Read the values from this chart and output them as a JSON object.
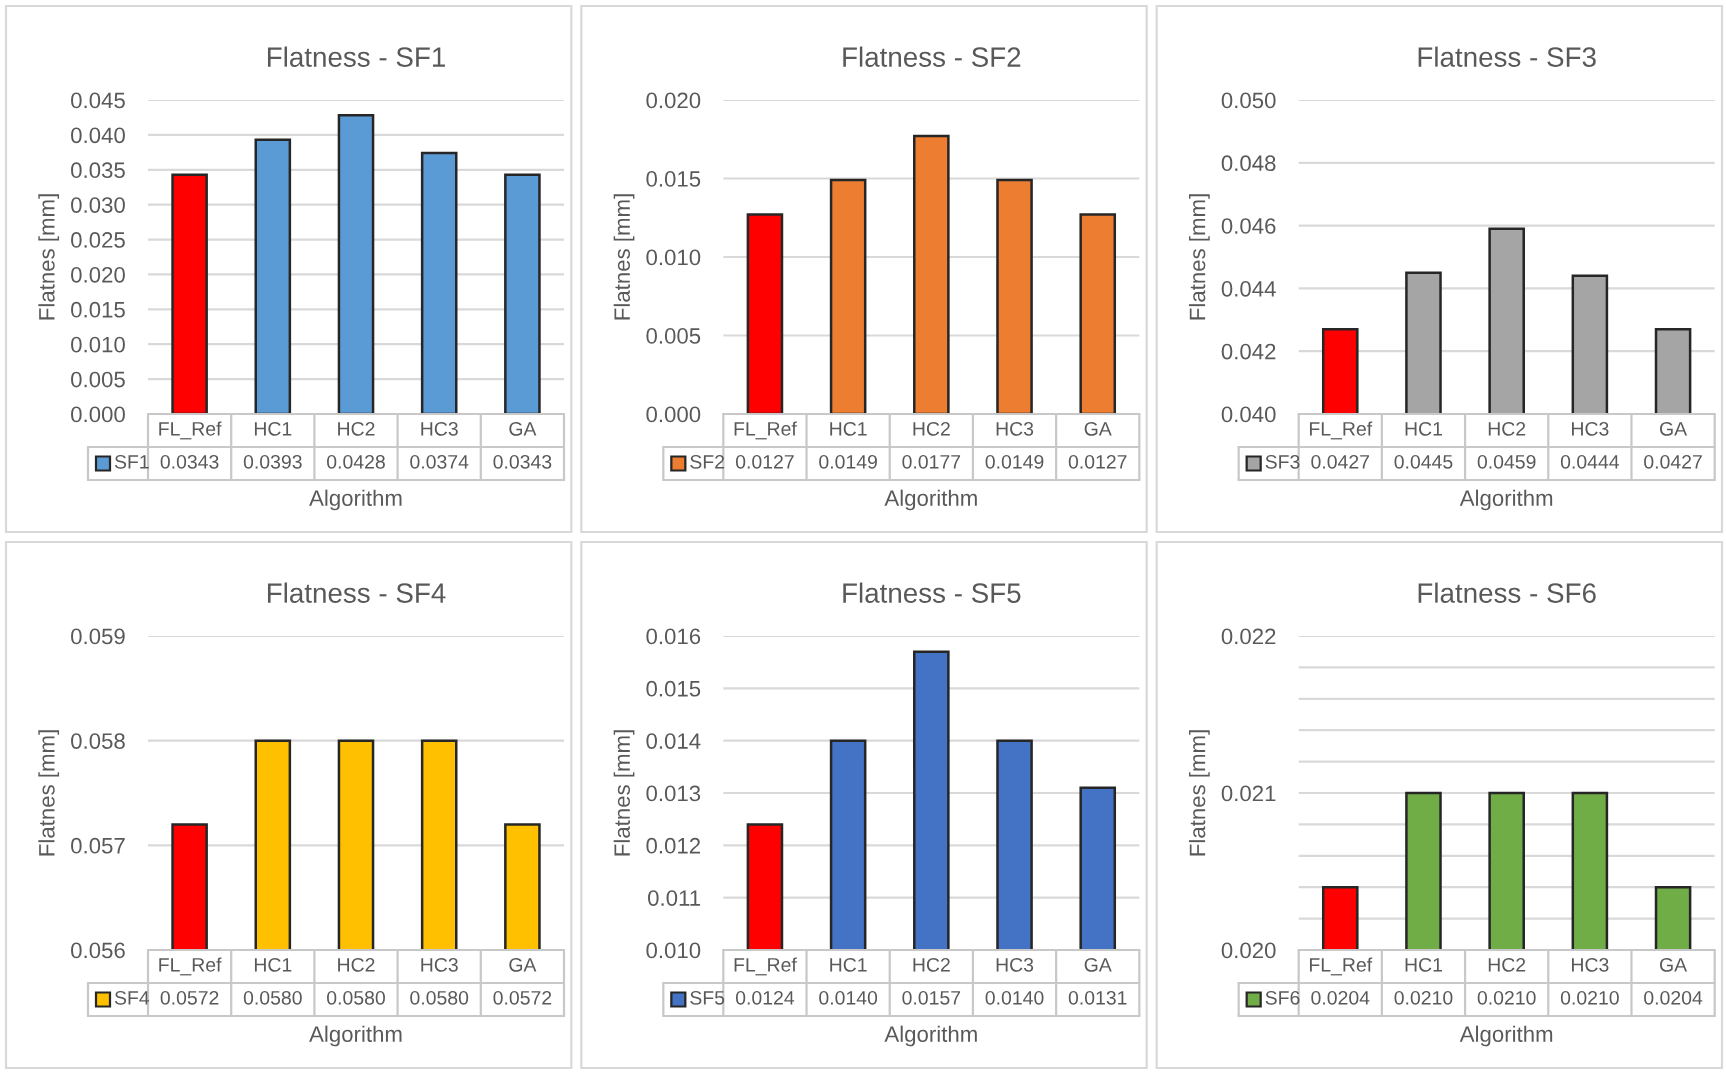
{
  "chart_data": [
    {
      "type": "bar",
      "title": "Flatness - SF1",
      "xlabel": "Algorithm",
      "ylabel": "Flatnes [mm]",
      "categories": [
        "FL_Ref",
        "HC1",
        "HC2",
        "HC3",
        "GA"
      ],
      "series": [
        {
          "name": "SF1",
          "color": "#5b9bd5",
          "colors": [
            "#ff0000",
            "#5b9bd5",
            "#5b9bd5",
            "#5b9bd5",
            "#5b9bd5"
          ],
          "values": [
            0.0343,
            0.0393,
            0.0428,
            0.0374,
            0.0343
          ]
        }
      ],
      "ylim": [
        0,
        0.045
      ],
      "yticks": [
        {
          "value": 0,
          "label": "0.000"
        },
        0.005,
        {
          "value": 0.01,
          "label": "0.010"
        },
        0.015,
        {
          "value": 0.02,
          "label": "0.020"
        },
        0.025,
        {
          "value": 0.03,
          "label": "0.030"
        },
        0.035,
        {
          "value": 0.04,
          "label": "0.040"
        },
        0.045
      ],
      "grid": "y",
      "legend": "bottom",
      "data_labels": true
    },
    {
      "type": "bar",
      "title": "Flatness - SF2",
      "xlabel": "Algorithm",
      "ylabel": "Flatnes [mm]",
      "categories": [
        "FL_Ref",
        "HC1",
        "HC2",
        "HC3",
        "GA"
      ],
      "series": [
        {
          "name": "SF2",
          "color": "#ed7d31",
          "colors": [
            "#ff0000",
            "#ed7d31",
            "#ed7d31",
            "#ed7d31",
            "#ed7d31"
          ],
          "values": [
            0.0127,
            0.0149,
            0.0177,
            0.0149,
            0.0127
          ]
        }
      ],
      "ylim": [
        0,
        0.02
      ],
      "yticks": [
        {
          "value": 0,
          "label": "0.000"
        },
        0.005,
        {
          "value": 0.01,
          "label": "0.010"
        },
        0.015,
        {
          "value": 0.02,
          "label": "0.020"
        }
      ],
      "grid": "y",
      "legend": "bottom",
      "data_labels": true
    },
    {
      "type": "bar",
      "title": "Flatness - SF3",
      "xlabel": "Algorithm",
      "ylabel": "Flatnes [mm]",
      "categories": [
        "FL_Ref",
        "HC1",
        "HC2",
        "HC3",
        "GA"
      ],
      "series": [
        {
          "name": "SF3",
          "color": "#a5a5a5",
          "colors": [
            "#ff0000",
            "#a5a5a5",
            "#a5a5a5",
            "#a5a5a5",
            "#a5a5a5"
          ],
          "values": [
            0.0427,
            0.0445,
            0.0459,
            0.0444,
            0.0427
          ]
        }
      ],
      "ylim": [
        0.04,
        0.05
      ],
      "yticks": [
        {
          "value": 0.04,
          "label": "0.040"
        },
        0.042,
        0.044,
        0.046,
        0.048,
        {
          "value": 0.05,
          "label": "0.050"
        }
      ],
      "grid": "y",
      "legend": "bottom",
      "data_labels": true
    },
    {
      "type": "bar",
      "title": "Flatness - SF4",
      "xlabel": "Algorithm",
      "ylabel": "Flatnes [mm]",
      "categories": [
        "FL_Ref",
        "HC1",
        "HC2",
        "HC3",
        "GA"
      ],
      "series": [
        {
          "name": "SF4",
          "color": "#ffc000",
          "colors": [
            "#ff0000",
            "#ffc000",
            "#ffc000",
            "#ffc000",
            "#ffc000"
          ],
          "values": [
            0.0572,
            0.058,
            0.058,
            0.058,
            0.0572
          ],
          "value_labels": [
            "0.0572",
            "0.0580",
            "0.0580",
            "0.0580",
            "0.0572"
          ]
        }
      ],
      "ylim": [
        0.056,
        0.059
      ],
      "yticks": [
        0.056,
        0.057,
        0.058,
        0.059
      ],
      "grid": "y",
      "legend": "bottom"
    },
    {
      "type": "bar",
      "title": "Flatness - SF5",
      "xlabel": "Algorithm",
      "ylabel": "Flatnes [mm]",
      "categories": [
        "FL_Ref",
        "HC1",
        "HC2",
        "HC3",
        "GA"
      ],
      "series": [
        {
          "name": "SF5",
          "color": "#4472c4",
          "colors": [
            "#ff0000",
            "#4472c4",
            "#4472c4",
            "#4472c4",
            "#4472c4"
          ],
          "values": [
            0.0124,
            0.014,
            0.0157,
            0.014,
            0.0131
          ],
          "value_labels": [
            "0.0124",
            "0.0140",
            "0.0157",
            "0.0140",
            "0.0131"
          ]
        }
      ],
      "ylim": [
        0.01,
        0.016
      ],
      "yticks": [
        {
          "value": 0.01,
          "label": "0.010"
        },
        0.011,
        0.012,
        0.013,
        0.014,
        0.015,
        0.016
      ],
      "grid": "y",
      "legend": "bottom"
    },
    {
      "type": "bar",
      "title": "Flatness - SF6",
      "xlabel": "Algorithm",
      "ylabel": "Flatnes [mm]",
      "categories": [
        "FL_Ref",
        "HC1",
        "HC2",
        "HC3",
        "GA"
      ],
      "series": [
        {
          "name": "SF6",
          "color": "#70ad47",
          "colors": [
            "#ff0000",
            "#70ad47",
            "#70ad47",
            "#70ad47",
            "#70ad47"
          ],
          "values": [
            0.0204,
            0.021,
            0.021,
            0.021,
            0.0204
          ],
          "value_labels": [
            "0.0204",
            "0.0210",
            "0.0210",
            "0.0210",
            "0.0204"
          ]
        }
      ],
      "ylim": [
        0.02,
        0.022
      ],
      "yticks": [
        {
          "value": 0.02,
          "label": "0.020"
        },
        {
          "value": 0.0202,
          "label": null
        },
        {
          "value": 0.0204,
          "label": null
        },
        {
          "value": 0.0206,
          "label": null
        },
        {
          "value": 0.0208,
          "label": null
        },
        0.021,
        {
          "value": 0.0212,
          "label": null
        },
        {
          "value": 0.0214,
          "label": null
        },
        {
          "value": 0.0216,
          "label": null
        },
        {
          "value": 0.0218,
          "label": null
        },
        0.022
      ],
      "grid": "y",
      "legend": "bottom"
    }
  ]
}
